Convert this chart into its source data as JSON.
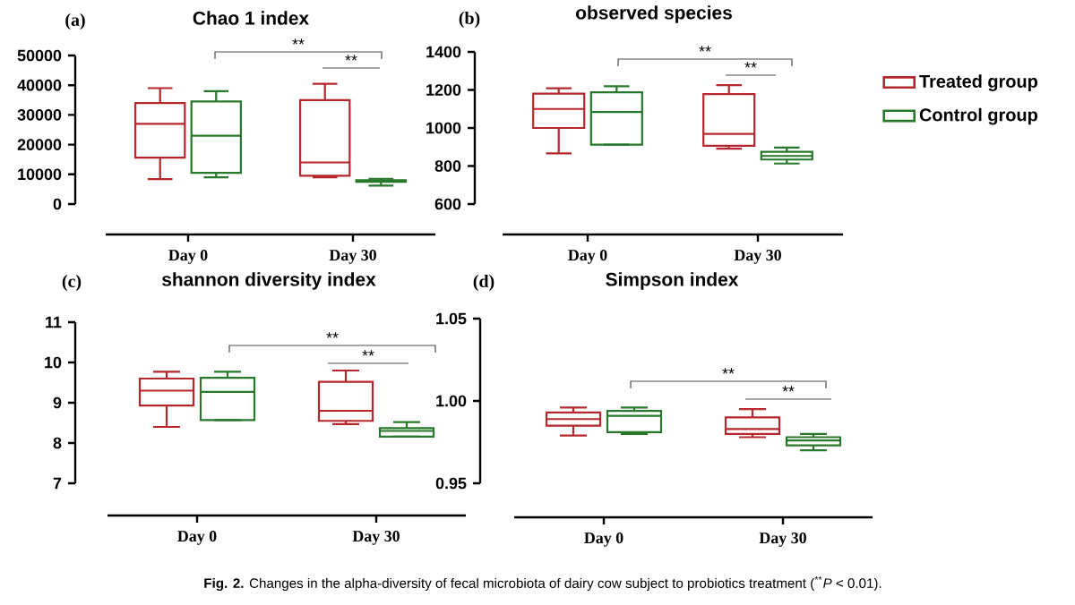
{
  "chart_data": [
    {
      "type": "box",
      "title": "Chao 1 index",
      "categories": [
        "Day 0",
        "Day 30"
      ],
      "ylim": [
        0,
        50000
      ],
      "yticks": [
        0,
        10000,
        20000,
        30000,
        40000,
        50000
      ],
      "series": [
        {
          "color": "#b5272d",
          "boxes": [
            {
              "low": 8400,
              "q1": 15600,
              "median": 27000,
              "q3": 34000,
              "high": 39000
            },
            {
              "low": 9000,
              "q1": 9500,
              "median": 14000,
              "q3": 35000,
              "high": 40500
            }
          ]
        },
        {
          "color": "#27782a",
          "boxes": [
            {
              "low": 9000,
              "q1": 10500,
              "median": 23000,
              "q3": 34500,
              "high": 38000
            },
            {
              "low": 6200,
              "q1": 7500,
              "median": 7800,
              "q3": 8000,
              "high": 8500
            }
          ]
        }
      ],
      "annotations": [
        "(a)",
        "**",
        "**",
        "**Fig. 2.** Changes in the alpha-diversity of fecal microbiota of dairy cow subject to probiotics treatment ($^{**}$*P* < 0.01)."
      ]
    },
    {
      "type": "box",
      "title": "observed species",
      "categories": [
        "Day 0",
        "Day 30"
      ],
      "ylim": [
        600,
        1400
      ],
      "yticks": [
        600,
        800,
        1000,
        1200,
        1400
      ],
      "legend": "right",
      "series": [
        {
          "name": "Treated group",
          "color": "#b5272d",
          "boxes": [
            {
              "low": 866,
              "q1": 1000,
              "median": 1100,
              "q3": 1181,
              "high": 1209
            },
            {
              "low": 891,
              "q1": 906,
              "median": 969,
              "q3": 1178,
              "high": 1225
            }
          ]
        },
        {
          "name": "Control group",
          "color": "#27782a",
          "boxes": [
            {
              "low": 912,
              "q1": 912,
              "median": 1084,
              "q3": 1188,
              "high": 1219
            },
            {
              "low": 813,
              "q1": 834,
              "median": 853,
              "q3": 875,
              "high": 897
            }
          ]
        }
      ],
      "annotations": [
        "(b)",
        "**",
        "**"
      ]
    },
    {
      "type": "box",
      "title": "shannon diversity index",
      "categories": [
        "Day 0",
        "Day 30"
      ],
      "ylim": [
        7,
        11
      ],
      "yticks": [
        7,
        8,
        9,
        10,
        11
      ],
      "series": [
        {
          "color": "#b5272d",
          "boxes": [
            {
              "low": 8.4,
              "q1": 8.93,
              "median": 9.3,
              "q3": 9.6,
              "high": 9.77
            },
            {
              "low": 8.47,
              "q1": 8.55,
              "median": 8.8,
              "q3": 9.52,
              "high": 9.8
            }
          ]
        },
        {
          "color": "#27782a",
          "boxes": [
            {
              "low": 8.57,
              "q1": 8.57,
              "median": 9.27,
              "q3": 9.62,
              "high": 9.77
            },
            {
              "low": 8.16,
              "q1": 8.16,
              "median": 8.3,
              "q3": 8.37,
              "high": 8.52
            }
          ]
        }
      ],
      "annotations": [
        "(c)",
        "**",
        "**"
      ]
    },
    {
      "type": "box",
      "title": "Simpson index",
      "categories": [
        "Day 0",
        "Day 30"
      ],
      "ylim": [
        0.95,
        1.05
      ],
      "yticks": [
        0.95,
        {
          "value": 1,
          "label": "1.00"
        },
        1.05
      ],
      "series": [
        {
          "color": "#b5272d",
          "boxes": [
            {
              "low": 0.979,
              "q1": 0.985,
              "median": 0.989,
              "q3": 0.993,
              "high": 0.996
            },
            {
              "low": 0.978,
              "q1": 0.98,
              "median": 0.983,
              "q3": 0.99,
              "high": 0.995
            }
          ]
        },
        {
          "color": "#27782a",
          "boxes": [
            {
              "low": 0.98,
              "q1": 0.981,
              "median": 0.991,
              "q3": 0.994,
              "high": 0.996
            },
            {
              "low": 0.97,
              "q1": 0.973,
              "median": 0.976,
              "q3": 0.978,
              "high": 0.98
            }
          ]
        }
      ],
      "annotations": [
        "(d)",
        "**",
        "**"
      ]
    }
  ]
}
